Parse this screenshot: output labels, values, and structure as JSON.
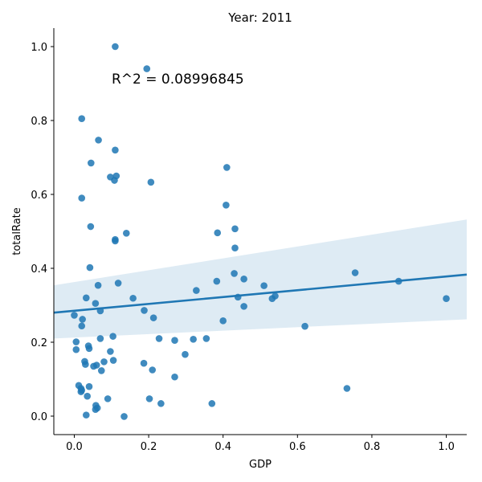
{
  "chart_data": {
    "type": "scatter",
    "title": "Year: 2011",
    "xlabel": "GDP",
    "ylabel": "totalRate",
    "annotation": "R^2 = 0.08996845",
    "xlim": [
      -0.055,
      1.055
    ],
    "ylim": [
      -0.05,
      1.05
    ],
    "x_ticks": [
      "0.0",
      "0.2",
      "0.4",
      "0.6",
      "0.8",
      "1.0"
    ],
    "y_ticks": [
      "0.0",
      "0.2",
      "0.4",
      "0.6",
      "0.8",
      "1.0"
    ],
    "grid": false,
    "colors": {
      "points": "#1f77b4",
      "line": "#1f77b4",
      "band": "#1f77b4"
    },
    "regression": {
      "x": [
        -0.055,
        1.055
      ],
      "y": [
        0.28,
        0.383
      ],
      "ci_lower": [
        0.21,
        0.262
      ],
      "ci_upper": [
        0.354,
        0.532
      ]
    },
    "points": [
      {
        "x": 0.11,
        "y": 1.0
      },
      {
        "x": 0.195,
        "y": 0.94
      },
      {
        "x": 0.02,
        "y": 0.805
      },
      {
        "x": 0.065,
        "y": 0.747
      },
      {
        "x": 0.11,
        "y": 0.72
      },
      {
        "x": 0.045,
        "y": 0.685
      },
      {
        "x": 0.41,
        "y": 0.673
      },
      {
        "x": 0.113,
        "y": 0.65
      },
      {
        "x": 0.097,
        "y": 0.647
      },
      {
        "x": 0.108,
        "y": 0.638
      },
      {
        "x": 0.206,
        "y": 0.633
      },
      {
        "x": 0.02,
        "y": 0.59
      },
      {
        "x": 0.408,
        "y": 0.571
      },
      {
        "x": 0.044,
        "y": 0.513
      },
      {
        "x": 0.432,
        "y": 0.507
      },
      {
        "x": 0.385,
        "y": 0.496
      },
      {
        "x": 0.14,
        "y": 0.495
      },
      {
        "x": 0.11,
        "y": 0.478
      },
      {
        "x": 0.11,
        "y": 0.474
      },
      {
        "x": 0.432,
        "y": 0.455
      },
      {
        "x": 0.042,
        "y": 0.402
      },
      {
        "x": 0.43,
        "y": 0.386
      },
      {
        "x": 0.755,
        "y": 0.388
      },
      {
        "x": 0.383,
        "y": 0.365
      },
      {
        "x": 0.456,
        "y": 0.371
      },
      {
        "x": 0.872,
        "y": 0.365
      },
      {
        "x": 0.118,
        "y": 0.36
      },
      {
        "x": 0.064,
        "y": 0.354
      },
      {
        "x": 0.51,
        "y": 0.353
      },
      {
        "x": 0.328,
        "y": 0.34
      },
      {
        "x": 0.54,
        "y": 0.325
      },
      {
        "x": 0.44,
        "y": 0.322
      },
      {
        "x": 0.032,
        "y": 0.32
      },
      {
        "x": 0.158,
        "y": 0.319
      },
      {
        "x": 0.532,
        "y": 0.318
      },
      {
        "x": 1.0,
        "y": 0.318
      },
      {
        "x": 0.057,
        "y": 0.305
      },
      {
        "x": 0.456,
        "y": 0.297
      },
      {
        "x": 0.188,
        "y": 0.286
      },
      {
        "x": 0.07,
        "y": 0.285
      },
      {
        "x": 0.0,
        "y": 0.273
      },
      {
        "x": 0.213,
        "y": 0.266
      },
      {
        "x": 0.022,
        "y": 0.262
      },
      {
        "x": 0.4,
        "y": 0.258
      },
      {
        "x": 0.02,
        "y": 0.244
      },
      {
        "x": 0.62,
        "y": 0.243
      },
      {
        "x": 0.104,
        "y": 0.216
      },
      {
        "x": 0.07,
        "y": 0.21
      },
      {
        "x": 0.228,
        "y": 0.21
      },
      {
        "x": 0.32,
        "y": 0.208
      },
      {
        "x": 0.355,
        "y": 0.21
      },
      {
        "x": 0.27,
        "y": 0.205
      },
      {
        "x": 0.005,
        "y": 0.201
      },
      {
        "x": 0.038,
        "y": 0.19
      },
      {
        "x": 0.04,
        "y": 0.183
      },
      {
        "x": 0.005,
        "y": 0.18
      },
      {
        "x": 0.097,
        "y": 0.175
      },
      {
        "x": 0.298,
        "y": 0.167
      },
      {
        "x": 0.105,
        "y": 0.151
      },
      {
        "x": 0.028,
        "y": 0.148
      },
      {
        "x": 0.08,
        "y": 0.147
      },
      {
        "x": 0.187,
        "y": 0.143
      },
      {
        "x": 0.03,
        "y": 0.14
      },
      {
        "x": 0.06,
        "y": 0.138
      },
      {
        "x": 0.052,
        "y": 0.135
      },
      {
        "x": 0.21,
        "y": 0.125
      },
      {
        "x": 0.073,
        "y": 0.123
      },
      {
        "x": 0.27,
        "y": 0.106
      },
      {
        "x": 0.012,
        "y": 0.083
      },
      {
        "x": 0.04,
        "y": 0.08
      },
      {
        "x": 0.018,
        "y": 0.075
      },
      {
        "x": 0.733,
        "y": 0.075
      },
      {
        "x": 0.02,
        "y": 0.07
      },
      {
        "x": 0.018,
        "y": 0.066
      },
      {
        "x": 0.035,
        "y": 0.054
      },
      {
        "x": 0.09,
        "y": 0.047
      },
      {
        "x": 0.202,
        "y": 0.047
      },
      {
        "x": 0.233,
        "y": 0.034
      },
      {
        "x": 0.37,
        "y": 0.034
      },
      {
        "x": 0.058,
        "y": 0.029
      },
      {
        "x": 0.062,
        "y": 0.022
      },
      {
        "x": 0.057,
        "y": 0.018
      },
      {
        "x": 0.032,
        "y": 0.003
      },
      {
        "x": 0.134,
        "y": -0.001
      }
    ]
  }
}
